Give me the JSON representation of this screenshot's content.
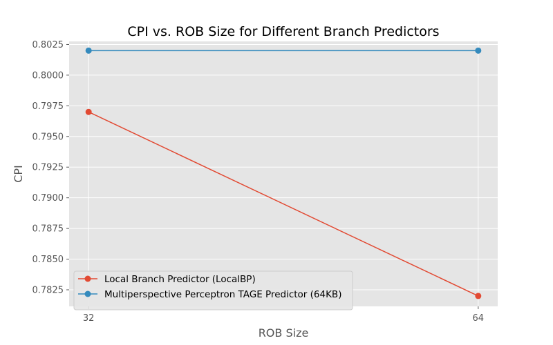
{
  "chart_data": {
    "type": "line",
    "title": "CPI vs. ROB Size for Different Branch Predictors",
    "xlabel": "ROB Size",
    "ylabel": "CPI",
    "categories": [
      "32",
      "64"
    ],
    "x": [
      32,
      64
    ],
    "ylim": [
      0.78115,
      0.80275
    ],
    "yticks": [
      0.7825,
      0.785,
      0.7875,
      0.79,
      0.7925,
      0.795,
      0.7975,
      0.8,
      0.8025
    ],
    "ytick_labels": [
      "0.7825",
      "0.7850",
      "0.7875",
      "0.7900",
      "0.7925",
      "0.7950",
      "0.7975",
      "0.8000",
      "0.8025"
    ],
    "grid": true,
    "legend_position": "lower-left",
    "style": "ggplot",
    "series": [
      {
        "name": "Local Branch Predictor (LocalBP)",
        "values": [
          0.797,
          0.782
        ],
        "color": "#E24A33",
        "marker": "circle"
      },
      {
        "name": "Multiperspective Perceptron TAGE Predictor (64KB)",
        "values": [
          0.802,
          0.802
        ],
        "color": "#348ABD",
        "marker": "circle"
      }
    ]
  }
}
